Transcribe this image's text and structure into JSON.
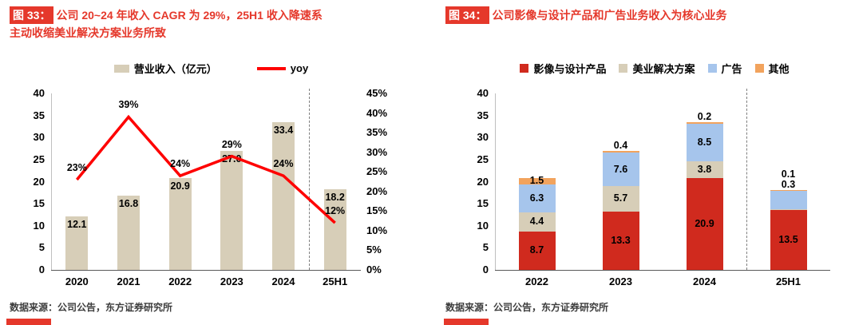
{
  "colors": {
    "accent_red": "#E5382B",
    "bar_beige": "#D7CEB8",
    "line_red": "#FE0000",
    "series_red": "#D02A1E",
    "series_blue": "#A6C5EC",
    "series_orange": "#F2A35D",
    "axis_line": "#595959",
    "separator_gray": "#7F7F7F",
    "source_text": "#3D3D3D"
  },
  "left_panel": {
    "fig_label": "图 33：",
    "title_line1": "公司 20~24 年收入 CAGR 为 29%，25H1 收入降速系",
    "title_line2": "主动收缩美业解决方案业务所致",
    "source": "数据来源：公司公告，东方证券研究所"
  },
  "right_panel": {
    "fig_label": "图 34：",
    "title": "公司影像与设计产品和广告业务收入为核心业务",
    "source": "数据来源：公司公告，东方证券研究所"
  },
  "chart_data": [
    {
      "type": "bar+line",
      "categories": [
        "2020",
        "2021",
        "2022",
        "2023",
        "2024",
        "25H1"
      ],
      "series": [
        {
          "name": "营业收入（亿元）",
          "chart_type": "bar",
          "axis": "left",
          "color_key": "bar_beige",
          "values": [
            12.1,
            16.8,
            20.9,
            27.0,
            33.4,
            18.2
          ],
          "labels": [
            "12.1",
            "16.8",
            "20.9",
            "27.0",
            "33.4",
            "18.2"
          ]
        },
        {
          "name": "yoy",
          "chart_type": "line",
          "axis": "right",
          "color_key": "line_red",
          "values": [
            23,
            39,
            24,
            29,
            24,
            12
          ],
          "labels": [
            "23%",
            "39%",
            "24%",
            "29%",
            "24%",
            "12%"
          ]
        }
      ],
      "left_axis": {
        "min": 0,
        "max": 40,
        "step": 5
      },
      "right_axis": {
        "min": 0,
        "max": 45,
        "step": 5,
        "suffix": "%"
      },
      "separator_before_index": 5,
      "legend_position": "top",
      "grid": false
    },
    {
      "type": "stacked-bar",
      "categories": [
        "2022",
        "2023",
        "2024",
        "25H1"
      ],
      "series": [
        {
          "name": "影像与设计产品",
          "color_key": "series_red",
          "values": [
            8.7,
            13.3,
            20.9,
            13.5
          ],
          "labels": [
            "8.7",
            "13.3",
            "20.9",
            "13.5"
          ]
        },
        {
          "name": "美业解决方案",
          "color_key": "bar_beige",
          "values": [
            4.4,
            5.7,
            3.8,
            0.3
          ],
          "labels": [
            "4.4",
            "5.7",
            "3.8",
            "0.3"
          ]
        },
        {
          "name": "广告",
          "color_key": "series_blue",
          "values": [
            6.3,
            7.6,
            8.5,
            4.2
          ],
          "labels": [
            "6.3",
            "7.6",
            "8.5",
            ""
          ]
        },
        {
          "name": "其他",
          "color_key": "series_orange",
          "values": [
            1.5,
            0.4,
            0.2,
            0.1
          ],
          "labels": [
            "1.5",
            "0.4",
            "0.2",
            "0.1"
          ]
        }
      ],
      "left_axis": {
        "min": 0,
        "max": 40,
        "step": 5
      },
      "separator_before_index": 3,
      "legend_position": "top",
      "grid": false
    }
  ]
}
